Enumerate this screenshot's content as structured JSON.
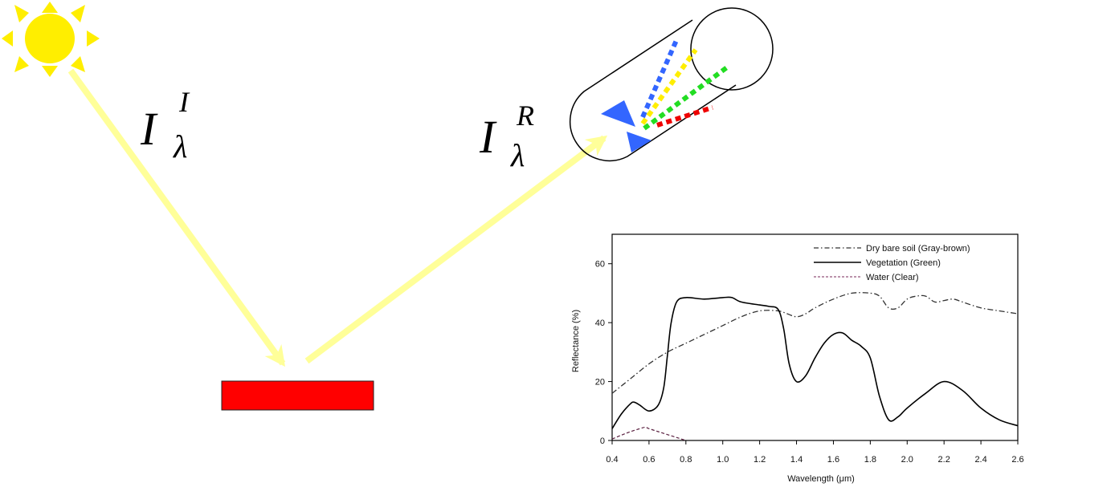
{
  "diagram": {
    "incident_label": {
      "base": "I",
      "sup": "I",
      "sub": "λ"
    },
    "reflected_label": {
      "base": "I",
      "sup": "R",
      "sub": "λ"
    },
    "colors": {
      "sun": "#FFEE00",
      "ray": "#FFFF99",
      "target": "#FF0000",
      "prism": "#3366FF",
      "dispersed": [
        "#3366FF",
        "#FFEE00",
        "#22DD22",
        "#EE0000"
      ]
    },
    "icons": [
      "sun-icon",
      "target-surface",
      "sensor-cylinder",
      "prism-icon"
    ]
  },
  "chart_data": {
    "type": "line",
    "xlabel": "Wavelength (μm)",
    "ylabel": "Reflectance (%)",
    "xlim": [
      0.4,
      2.6
    ],
    "ylim": [
      0,
      70
    ],
    "xticks": [
      "0.4",
      "0.6",
      "0.8",
      "1.0",
      "1.2",
      "1.4",
      "1.6",
      "1.8",
      "2.0",
      "2.2",
      "2.4",
      "2.6"
    ],
    "yticks": [
      "0",
      "20",
      "40",
      "60"
    ],
    "legend_position": "top-right",
    "grid": false,
    "series": [
      {
        "name": "Dry bare soil (Gray-brown)",
        "style": "dash-dot",
        "x": [
          0.4,
          0.5,
          0.6,
          0.7,
          0.8,
          0.9,
          1.0,
          1.1,
          1.2,
          1.3,
          1.35,
          1.4,
          1.45,
          1.5,
          1.6,
          1.7,
          1.8,
          1.85,
          1.9,
          1.95,
          2.0,
          2.05,
          2.1,
          2.15,
          2.2,
          2.25,
          2.3,
          2.4,
          2.5,
          2.6
        ],
        "y": [
          16,
          21,
          26,
          30,
          33,
          36,
          39,
          42,
          44,
          44,
          43,
          42,
          43,
          45,
          48,
          50,
          50,
          49,
          45,
          45,
          48,
          49,
          49,
          47,
          47.5,
          48,
          47,
          45,
          44,
          43
        ]
      },
      {
        "name": "Vegetation (Green)",
        "style": "solid",
        "x": [
          0.4,
          0.45,
          0.5,
          0.52,
          0.55,
          0.6,
          0.65,
          0.68,
          0.7,
          0.72,
          0.75,
          0.8,
          0.9,
          1.0,
          1.05,
          1.1,
          1.2,
          1.25,
          1.3,
          1.33,
          1.36,
          1.4,
          1.45,
          1.5,
          1.55,
          1.6,
          1.65,
          1.7,
          1.75,
          1.8,
          1.85,
          1.9,
          1.95,
          2.0,
          2.1,
          2.2,
          2.3,
          2.4,
          2.5,
          2.6
        ],
        "y": [
          4,
          9,
          12.5,
          13,
          12,
          10,
          12,
          18,
          29,
          40,
          47,
          48.5,
          48,
          48.5,
          48.5,
          47,
          46,
          45.5,
          44.5,
          38,
          26,
          20,
          22,
          28,
          33,
          36,
          36.5,
          34,
          32,
          28,
          15,
          7,
          8,
          11,
          16,
          20,
          17,
          11,
          7,
          5
        ]
      },
      {
        "name": "Water (Clear)",
        "style": "dashed",
        "x": [
          0.4,
          0.45,
          0.5,
          0.55,
          0.58,
          0.6,
          0.65,
          0.7,
          0.75,
          0.8
        ],
        "y": [
          0.5,
          1.8,
          3,
          4,
          4.5,
          4,
          3,
          2,
          1,
          0
        ]
      }
    ]
  }
}
